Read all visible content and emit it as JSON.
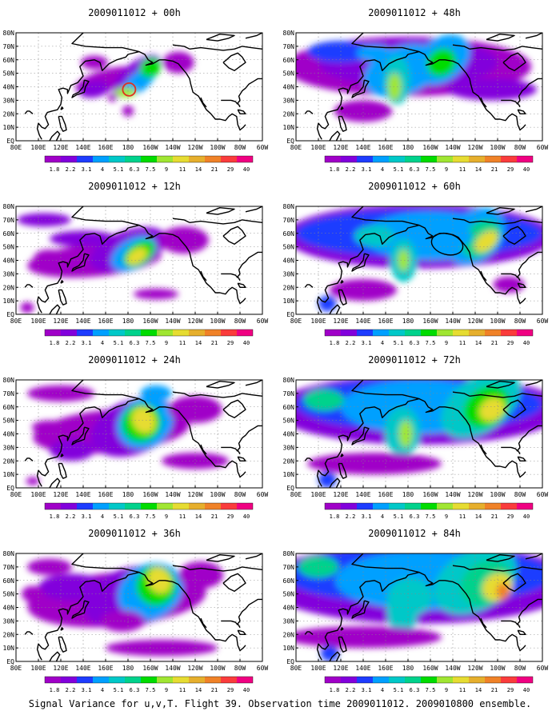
{
  "caption": "Signal Variance for u,v,T. Flight 39. Observation time 2009011012. 2009010800 ensemble.",
  "chart_data": {
    "type": "heatmap",
    "init_time": "2009011012",
    "lat_ticks": [
      "EQ",
      "10N",
      "20N",
      "30N",
      "40N",
      "50N",
      "60N",
      "70N",
      "80N"
    ],
    "lon_ticks": [
      "80E",
      "100E",
      "120E",
      "140E",
      "160E",
      "180",
      "160W",
      "140W",
      "120W",
      "100W",
      "80W",
      "60W"
    ],
    "colorbar": {
      "levels": [
        "1.8",
        "2.2",
        "3.1",
        "4",
        "5.1",
        "6.3",
        "7.5",
        "9",
        "11",
        "14",
        "21",
        "29",
        "40"
      ],
      "colors": [
        "#a000c8",
        "#8200dc",
        "#1e3cff",
        "#00a0ff",
        "#00c8c8",
        "#00d28c",
        "#00dc00",
        "#a0e632",
        "#e6dc32",
        "#e6af2d",
        "#f08228",
        "#fa3c3c",
        "#f00082"
      ]
    },
    "panels": [
      {
        "title": "2009011012 + 00h",
        "lead": "00h",
        "marker": {
          "type": "circle",
          "color": "#e0301e",
          "lon": 181,
          "lat": 38
        }
      },
      {
        "title": "2009011012 + 48h",
        "lead": "48h"
      },
      {
        "title": "2009011012 + 12h",
        "lead": "12h"
      },
      {
        "title": "2009011012 + 60h",
        "lead": "60h",
        "marker": {
          "type": "ellipse",
          "color": "#000000",
          "lon": 215,
          "lat": 52
        }
      },
      {
        "title": "2009011012 + 24h",
        "lead": "24h"
      },
      {
        "title": "2009011012 + 72h",
        "lead": "72h"
      },
      {
        "title": "2009011012 + 36h",
        "lead": "36h"
      },
      {
        "title": "2009011012 + 84h",
        "lead": "84h"
      }
    ]
  }
}
